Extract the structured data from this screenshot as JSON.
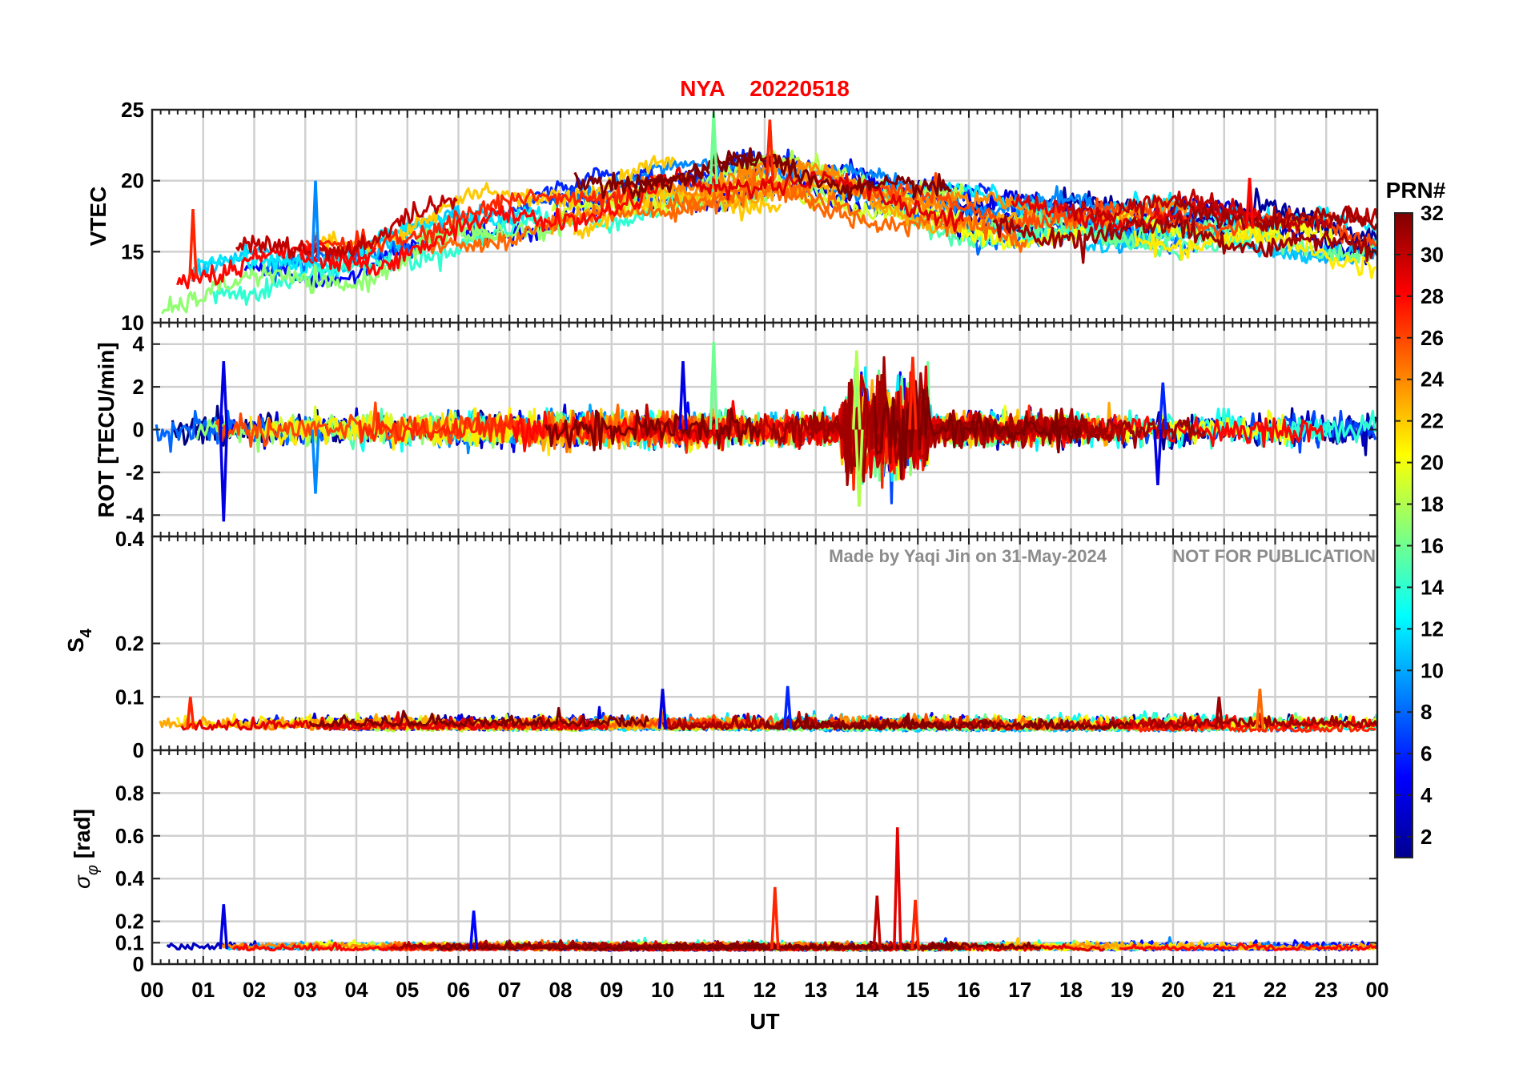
{
  "title": {
    "station": "NYA",
    "date": "20220518",
    "color": "#ff0000"
  },
  "watermark": {
    "author_note": "Made by Yaqi Jin on 31-May-2024",
    "notice": "NOT FOR PUBLICATION"
  },
  "colorbar": {
    "label": "PRN#",
    "ticks": [
      2,
      4,
      6,
      8,
      10,
      12,
      14,
      16,
      18,
      20,
      22,
      24,
      26,
      28,
      30,
      32
    ],
    "range": [
      1,
      32
    ],
    "colormap": "jet"
  },
  "chart_data": {
    "type": "line",
    "xlabel": "UT",
    "x_range": [
      0,
      24
    ],
    "x_unit": "hour UT",
    "x_ticks": [
      "00",
      "01",
      "02",
      "03",
      "04",
      "05",
      "06",
      "07",
      "08",
      "09",
      "10",
      "11",
      "12",
      "13",
      "14",
      "15",
      "16",
      "17",
      "18",
      "19",
      "20",
      "21",
      "22",
      "23",
      "00"
    ],
    "grid": true,
    "panels": [
      {
        "id": "vtec",
        "ylabel": "VTEC",
        "ylim": [
          10,
          25
        ],
        "yticks": [
          10,
          15,
          20,
          25
        ],
        "description_values": {
          "envelope_hours": [
            0,
            2,
            4,
            6,
            8,
            10,
            12,
            14,
            16,
            18,
            20,
            22,
            24
          ],
          "typical_vtec": [
            12.5,
            14,
            14.5,
            17,
            18,
            19.5,
            20,
            19,
            17.5,
            17,
            17,
            16.5,
            15.5
          ],
          "peaks": [
            {
              "hour": 11.0,
              "value": 24.8,
              "prn": 16
            },
            {
              "hour": 12.1,
              "value": 24.3,
              "prn": 27
            },
            {
              "hour": 0.8,
              "value": 18.0,
              "prn": 27
            },
            {
              "hour": 3.2,
              "value": 20.0,
              "prn": 9
            },
            {
              "hour": 21.5,
              "value": 20.2,
              "prn": 28
            }
          ]
        }
      },
      {
        "id": "rot",
        "ylabel": "ROT [TECU/min]",
        "ylim": [
          -5,
          5
        ],
        "yticks": [
          -4,
          -2,
          0,
          2,
          4
        ],
        "description_values": {
          "baseline": 0,
          "spikes": [
            {
              "hour": 1.4,
              "value": -4.3,
              "prn": 4
            },
            {
              "hour": 1.4,
              "value": 3.2,
              "prn": 4
            },
            {
              "hour": 3.2,
              "value": -3.0,
              "prn": 9
            },
            {
              "hour": 10.4,
              "value": 3.2,
              "prn": 4
            },
            {
              "hour": 11.0,
              "value": 4.1,
              "prn": 16
            },
            {
              "hour": 13.8,
              "value": 3.7,
              "prn": 18
            },
            {
              "hour": 13.85,
              "value": -3.6,
              "prn": 18
            },
            {
              "hour": 14.9,
              "value": 3.4,
              "prn": 27
            },
            {
              "hour": 19.7,
              "value": -2.6,
              "prn": 4
            },
            {
              "hour": 19.8,
              "value": 2.2,
              "prn": 6
            }
          ]
        }
      },
      {
        "id": "s4",
        "ylabel": "S4",
        "ylabel_main": "S",
        "ylabel_sub": "4",
        "ylim": [
          0,
          0.4
        ],
        "yticks": [
          0,
          0.1,
          0.2,
          0.4
        ],
        "ytick_labels": [
          "0",
          "0.1",
          "0.2",
          "0.4"
        ],
        "description_values": {
          "baseline": 0.04,
          "spikes": [
            {
              "hour": 0.75,
              "value": 0.1,
              "prn": 27
            },
            {
              "hour": 10.0,
              "value": 0.115,
              "prn": 4
            },
            {
              "hour": 12.45,
              "value": 0.12,
              "prn": 6
            },
            {
              "hour": 21.7,
              "value": 0.115,
              "prn": 25
            },
            {
              "hour": 20.9,
              "value": 0.1,
              "prn": 31
            }
          ]
        }
      },
      {
        "id": "sigma",
        "ylabel": "σ_φ [rad]",
        "ylabel_main": "σ",
        "ylabel_sub": "φ",
        "ylabel_tail": " [rad]",
        "ylim": [
          0,
          1
        ],
        "yticks": [
          0,
          0.1,
          0.2,
          0.4,
          0.6,
          0.8
        ],
        "ytick_labels": [
          "0",
          "0.1",
          "0.2",
          "0.4",
          "0.6",
          "0.8"
        ],
        "description_values": {
          "baseline": 0.07,
          "spikes": [
            {
              "hour": 14.6,
              "value": 0.64,
              "prn": 29
            },
            {
              "hour": 12.2,
              "value": 0.36,
              "prn": 27
            },
            {
              "hour": 14.2,
              "value": 0.32,
              "prn": 30
            },
            {
              "hour": 14.95,
              "value": 0.3,
              "prn": 27
            },
            {
              "hour": 1.4,
              "value": 0.28,
              "prn": 4
            },
            {
              "hour": 6.3,
              "value": 0.25,
              "prn": 5
            }
          ]
        }
      }
    ],
    "series_note": "one line per GPS PRN 1–32, colored by PRN via jet colormap"
  }
}
